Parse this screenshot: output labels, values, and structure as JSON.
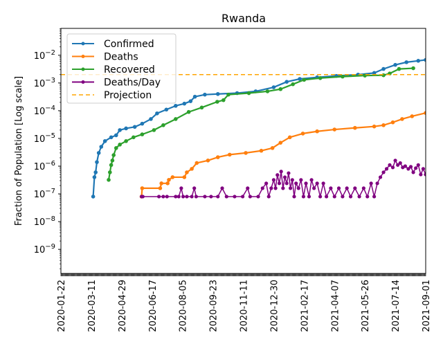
{
  "chart_data": {
    "type": "line",
    "title": "Rwanda",
    "xlabel": "",
    "ylabel": "Fraction of Population [Log scale]",
    "yscale": "log",
    "ylim": [
      1.35e-10,
      0.093
    ],
    "xlim": [
      "2020-01-22",
      "2021-09-01"
    ],
    "grid": false,
    "legend_position": "top-left",
    "x_tick_labels": [
      "2020-01-22",
      "2020-03-11",
      "2020-04-29",
      "2020-06-17",
      "2020-08-05",
      "2020-09-23",
      "2020-11-11",
      "2020-12-30",
      "2021-02-17",
      "2021-04-07",
      "2021-05-26",
      "2021-07-14",
      "2021-09-01"
    ],
    "y_ticks": [
      {
        "value": 1e-09,
        "base": "10",
        "exp": "−9"
      },
      {
        "value": 1e-08,
        "base": "10",
        "exp": "−8"
      },
      {
        "value": 1e-07,
        "base": "10",
        "exp": "−7"
      },
      {
        "value": 1e-06,
        "base": "10",
        "exp": "−6"
      },
      {
        "value": 1e-05,
        "base": "10",
        "exp": "−5"
      },
      {
        "value": 0.0001,
        "base": "10",
        "exp": "−4"
      },
      {
        "value": 0.001,
        "base": "10",
        "exp": "−3"
      },
      {
        "value": 0.01,
        "base": "10",
        "exp": "−2"
      }
    ],
    "series": [
      {
        "name": "Confirmed",
        "color": "#1f77b4",
        "style": "line-marker",
        "points": [
          [
            "2020-03-14",
            8e-08
          ],
          [
            "2020-03-16",
            4e-07
          ],
          [
            "2020-03-18",
            6e-07
          ],
          [
            "2020-03-20",
            1.4e-06
          ],
          [
            "2020-03-23",
            3e-06
          ],
          [
            "2020-03-27",
            5e-06
          ],
          [
            "2020-04-02",
            8e-06
          ],
          [
            "2020-04-12",
            1.1e-05
          ],
          [
            "2020-04-20",
            1.3e-05
          ],
          [
            "2020-04-26",
            2e-05
          ],
          [
            "2020-05-06",
            2.3e-05
          ],
          [
            "2020-05-20",
            2.6e-05
          ],
          [
            "2020-06-01",
            3.4e-05
          ],
          [
            "2020-06-15",
            5e-05
          ],
          [
            "2020-06-25",
            8e-05
          ],
          [
            "2020-07-10",
            0.00011
          ],
          [
            "2020-07-25",
            0.00015
          ],
          [
            "2020-08-08",
            0.00018
          ],
          [
            "2020-08-18",
            0.00022
          ],
          [
            "2020-08-25",
            0.00032
          ],
          [
            "2020-09-10",
            0.00038
          ],
          [
            "2020-10-01",
            0.0004
          ],
          [
            "2020-11-01",
            0.00043
          ],
          [
            "2020-12-01",
            0.0005
          ],
          [
            "2020-12-30",
            0.0007
          ],
          [
            "2021-01-20",
            0.0011
          ],
          [
            "2021-02-10",
            0.0014
          ],
          [
            "2021-03-10",
            0.0016
          ],
          [
            "2021-04-10",
            0.0018
          ],
          [
            "2021-05-15",
            0.002
          ],
          [
            "2021-06-10",
            0.0023
          ],
          [
            "2021-06-25",
            0.0032
          ],
          [
            "2021-07-14",
            0.0045
          ],
          [
            "2021-08-01",
            0.0056
          ],
          [
            "2021-08-20",
            0.0063
          ],
          [
            "2021-09-01",
            0.0068
          ]
        ]
      },
      {
        "name": "Deaths",
        "color": "#ff7f0e",
        "style": "line-marker",
        "points": [
          [
            "2020-05-31",
            8e-08
          ],
          [
            "2020-06-01",
            1.6e-07
          ],
          [
            "2020-06-30",
            1.6e-07
          ],
          [
            "2020-07-02",
            2.4e-07
          ],
          [
            "2020-07-12",
            2.4e-07
          ],
          [
            "2020-07-14",
            3.2e-07
          ],
          [
            "2020-07-20",
            4e-07
          ],
          [
            "2020-08-08",
            4e-07
          ],
          [
            "2020-08-12",
            6e-07
          ],
          [
            "2020-08-20",
            8e-07
          ],
          [
            "2020-08-28",
            1.3e-06
          ],
          [
            "2020-09-15",
            1.6e-06
          ],
          [
            "2020-10-01",
            2.1e-06
          ],
          [
            "2020-10-20",
            2.6e-06
          ],
          [
            "2020-11-15",
            3e-06
          ],
          [
            "2020-12-10",
            3.6e-06
          ],
          [
            "2020-12-28",
            4.5e-06
          ],
          [
            "2021-01-10",
            7e-06
          ],
          [
            "2021-01-25",
            1.1e-05
          ],
          [
            "2021-02-15",
            1.5e-05
          ],
          [
            "2021-03-10",
            1.8e-05
          ],
          [
            "2021-04-07",
            2.1e-05
          ],
          [
            "2021-05-10",
            2.4e-05
          ],
          [
            "2021-06-10",
            2.7e-05
          ],
          [
            "2021-06-25",
            3e-05
          ],
          [
            "2021-07-10",
            3.8e-05
          ],
          [
            "2021-07-25",
            5e-05
          ],
          [
            "2021-08-10",
            6.3e-05
          ],
          [
            "2021-09-01",
            8.3e-05
          ]
        ]
      },
      {
        "name": "Recovered",
        "color": "#2ca02c",
        "style": "line-marker",
        "points": [
          [
            "2020-04-08",
            3.2e-07
          ],
          [
            "2020-04-10",
            6e-07
          ],
          [
            "2020-04-12",
            1.1e-06
          ],
          [
            "2020-04-14",
            1.6e-06
          ],
          [
            "2020-04-16",
            2.5e-06
          ],
          [
            "2020-04-20",
            4.5e-06
          ],
          [
            "2020-04-26",
            6e-06
          ],
          [
            "2020-05-06",
            8e-06
          ],
          [
            "2020-05-18",
            1.1e-05
          ],
          [
            "2020-06-01",
            1.4e-05
          ],
          [
            "2020-06-20",
            2e-05
          ],
          [
            "2020-07-05",
            3e-05
          ],
          [
            "2020-07-25",
            5e-05
          ],
          [
            "2020-08-15",
            9e-05
          ],
          [
            "2020-09-05",
            0.00013
          ],
          [
            "2020-09-30",
            0.00021
          ],
          [
            "2020-10-10",
            0.00024
          ],
          [
            "2020-10-18",
            0.00038
          ],
          [
            "2020-11-20",
            0.00043
          ],
          [
            "2020-12-20",
            0.0005
          ],
          [
            "2021-01-10",
            0.0006
          ],
          [
            "2021-01-30",
            0.0009
          ],
          [
            "2021-02-17",
            0.0013
          ],
          [
            "2021-03-15",
            0.0015
          ],
          [
            "2021-04-20",
            0.0017
          ],
          [
            "2021-05-26",
            0.00185
          ],
          [
            "2021-06-25",
            0.0019
          ],
          [
            "2021-07-05",
            0.0022
          ],
          [
            "2021-07-20",
            0.0032
          ],
          [
            "2021-08-12",
            0.0034
          ]
        ]
      },
      {
        "name": "Deaths/Day",
        "color": "#800080",
        "style": "line-marker",
        "points": [
          [
            "2020-05-31",
            8e-08
          ],
          [
            "2020-06-02",
            8e-08
          ],
          [
            "2020-06-28",
            8e-08
          ],
          [
            "2020-07-05",
            8e-08
          ],
          [
            "2020-07-11",
            8e-08
          ],
          [
            "2020-07-25",
            8e-08
          ],
          [
            "2020-07-30",
            8e-08
          ],
          [
            "2020-08-03",
            1.6e-07
          ],
          [
            "2020-08-06",
            8e-08
          ],
          [
            "2020-08-12",
            8e-08
          ],
          [
            "2020-08-20",
            8e-08
          ],
          [
            "2020-08-24",
            1.6e-07
          ],
          [
            "2020-08-27",
            8e-08
          ],
          [
            "2020-09-10",
            8e-08
          ],
          [
            "2020-09-20",
            8e-08
          ],
          [
            "2020-10-01",
            8e-08
          ],
          [
            "2020-10-08",
            1.6e-07
          ],
          [
            "2020-10-15",
            8e-08
          ],
          [
            "2020-10-28",
            8e-08
          ],
          [
            "2020-11-10",
            8e-08
          ],
          [
            "2020-11-18",
            1.6e-07
          ],
          [
            "2020-11-22",
            8e-08
          ],
          [
            "2020-12-05",
            8e-08
          ],
          [
            "2020-12-12",
            1.6e-07
          ],
          [
            "2020-12-18",
            2.4e-07
          ],
          [
            "2020-12-22",
            8e-08
          ],
          [
            "2020-12-26",
            1.6e-07
          ],
          [
            "2020-12-30",
            3.2e-07
          ],
          [
            "2021-01-02",
            1.6e-07
          ],
          [
            "2021-01-05",
            4.8e-07
          ],
          [
            "2021-01-08",
            2.4e-07
          ],
          [
            "2021-01-11",
            6.4e-07
          ],
          [
            "2021-01-14",
            1.6e-07
          ],
          [
            "2021-01-17",
            4e-07
          ],
          [
            "2021-01-20",
            2.4e-07
          ],
          [
            "2021-01-23",
            5.6e-07
          ],
          [
            "2021-01-26",
            1.6e-07
          ],
          [
            "2021-01-29",
            3.2e-07
          ],
          [
            "2021-02-01",
            8e-08
          ],
          [
            "2021-02-04",
            2.4e-07
          ],
          [
            "2021-02-08",
            1.6e-07
          ],
          [
            "2021-02-12",
            3.2e-07
          ],
          [
            "2021-02-16",
            8e-08
          ],
          [
            "2021-02-20",
            2.4e-07
          ],
          [
            "2021-02-25",
            8e-08
          ],
          [
            "2021-03-01",
            3.2e-07
          ],
          [
            "2021-03-05",
            1.6e-07
          ],
          [
            "2021-03-10",
            2.4e-07
          ],
          [
            "2021-03-15",
            8e-08
          ],
          [
            "2021-03-20",
            2.4e-07
          ],
          [
            "2021-03-25",
            8e-08
          ],
          [
            "2021-04-01",
            1.6e-07
          ],
          [
            "2021-04-07",
            8e-08
          ],
          [
            "2021-04-14",
            1.6e-07
          ],
          [
            "2021-04-20",
            8e-08
          ],
          [
            "2021-04-27",
            1.6e-07
          ],
          [
            "2021-05-03",
            8e-08
          ],
          [
            "2021-05-10",
            1.6e-07
          ],
          [
            "2021-05-17",
            8e-08
          ],
          [
            "2021-05-24",
            1.6e-07
          ],
          [
            "2021-05-30",
            8e-08
          ],
          [
            "2021-06-05",
            2.4e-07
          ],
          [
            "2021-06-10",
            8e-08
          ],
          [
            "2021-06-15",
            2.4e-07
          ],
          [
            "2021-06-20",
            4e-07
          ],
          [
            "2021-06-25",
            6e-07
          ],
          [
            "2021-06-30",
            8e-07
          ],
          [
            "2021-07-05",
            1.1e-06
          ],
          [
            "2021-07-10",
            9e-07
          ],
          [
            "2021-07-14",
            1.6e-06
          ],
          [
            "2021-07-18",
            1.1e-06
          ],
          [
            "2021-07-22",
            1.3e-06
          ],
          [
            "2021-07-26",
            9e-07
          ],
          [
            "2021-07-30",
            1e-06
          ],
          [
            "2021-08-04",
            8e-07
          ],
          [
            "2021-08-08",
            9.5e-07
          ],
          [
            "2021-08-12",
            6e-07
          ],
          [
            "2021-08-16",
            8.5e-07
          ],
          [
            "2021-08-20",
            1.1e-06
          ],
          [
            "2021-08-24",
            5e-07
          ],
          [
            "2021-08-28",
            8e-07
          ],
          [
            "2021-09-01",
            5e-07
          ]
        ]
      },
      {
        "name": "Projection",
        "color": "#ffa500",
        "style": "dashed",
        "points": [
          [
            "2020-01-22",
            0.002
          ],
          [
            "2021-09-01",
            0.002
          ]
        ]
      }
    ]
  }
}
